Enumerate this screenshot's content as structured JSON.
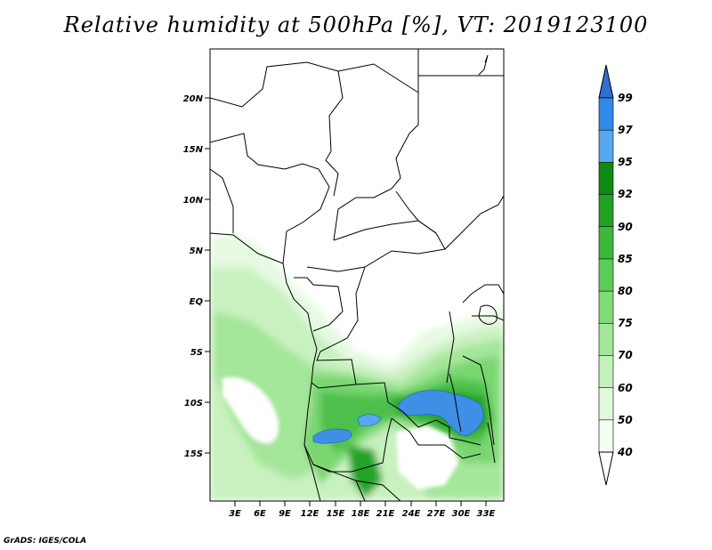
{
  "title": "Relative humidity at 500hPa [%], VT: 2019123100",
  "credit": "GrADS: IGES/COLA",
  "map": {
    "lat_labels": [
      "20N",
      "15N",
      "10N",
      "5N",
      "EQ",
      "5S",
      "10S",
      "15S"
    ],
    "lon_labels": [
      "3E",
      "6E",
      "9E",
      "12E",
      "15E",
      "18E",
      "21E",
      "24E",
      "27E",
      "30E",
      "33E"
    ],
    "lon_range": [
      0,
      35
    ],
    "lat_range": [
      -19,
      24
    ]
  },
  "colorbar": {
    "levels": [
      "99",
      "97",
      "95",
      "92",
      "90",
      "85",
      "80",
      "75",
      "70",
      "60",
      "50",
      "40"
    ],
    "colors": [
      "#1e6fd8",
      "#2f8ae8",
      "#56a8f0",
      "#0f8a10",
      "#22a225",
      "#3cb83c",
      "#5ccc58",
      "#7fdb78",
      "#a2e79a",
      "#c3f1bc",
      "#dff9da",
      "#f3fdf1"
    ],
    "top_arrow_color": "#2f6fd0",
    "bottom_arrow_color": "#ffffff"
  }
}
